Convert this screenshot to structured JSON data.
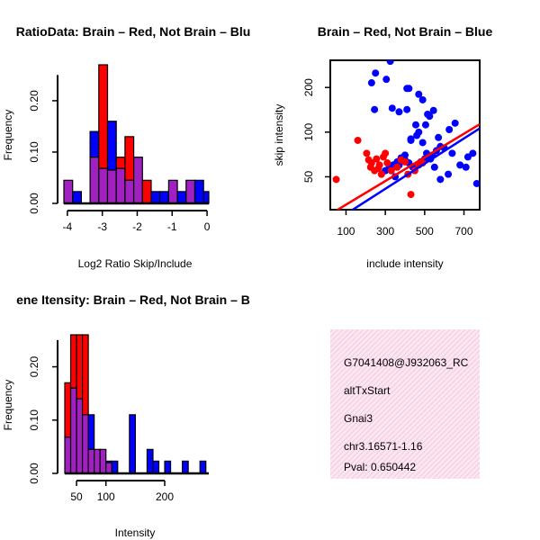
{
  "chart_data": [
    {
      "type": "bar",
      "title": "RatioData: Brain – Red, Not Brain – Blu",
      "xlabel": "Log2 Ratio Skip/Include",
      "ylabel": "Frequency",
      "xlim": [
        -4.1,
        0.05
      ],
      "ylim": [
        0,
        0.27
      ],
      "xticks": [
        "-4",
        "-3",
        "-2",
        "-1",
        "0"
      ],
      "yticks": [
        "0.00",
        "0.10",
        "0.20"
      ],
      "bin_edges": [
        -4.1,
        -3.85,
        -3.6,
        -3.35,
        -3.1,
        -2.85,
        -2.6,
        -2.35,
        -2.1,
        -1.85,
        -1.6,
        -1.35,
        -1.1,
        -0.85,
        -0.6,
        -0.35,
        -0.1,
        0.05
      ],
      "series": [
        {
          "name": "Brain",
          "color": "#ff0000",
          "values": [
            0.045,
            0,
            0,
            0.09,
            0.27,
            0.065,
            0.09,
            0.13,
            0.09,
            0.045,
            0,
            0,
            0.045,
            0,
            0.045,
            0,
            0
          ]
        },
        {
          "name": "Not Brain",
          "color": "#0000ff",
          "values": [
            0.045,
            0.023,
            0,
            0.14,
            0.068,
            0.16,
            0.068,
            0.045,
            0.09,
            0,
            0.023,
            0.023,
            0.045,
            0.023,
            0.045,
            0.045,
            0.023
          ]
        }
      ]
    },
    {
      "type": "scatter",
      "title": "Brain – Red, Not Brain – Blue",
      "xlabel": "include intensity",
      "ylabel": "skip intensity",
      "xlim": [
        20,
        780
      ],
      "ylim": [
        30,
        305
      ],
      "xticks": [
        "100",
        "300",
        "500",
        "700"
      ],
      "yticks": [
        "50",
        "100",
        "200"
      ],
      "series": [
        {
          "name": "Brain",
          "color": "#ff0000",
          "x": [
            50,
            160,
            205,
            215,
            225,
            230,
            245,
            255,
            265,
            270,
            280,
            290,
            300,
            310,
            330,
            360,
            380,
            400,
            415,
            430,
            450,
            470,
            490
          ],
          "y": [
            48,
            88,
            72,
            65,
            58,
            62,
            55,
            66,
            57,
            60,
            52,
            68,
            72,
            62,
            55,
            58,
            65,
            63,
            52,
            38,
            55,
            60,
            62
          ],
          "fit": [
            [
              20,
              28
            ],
            [
              780,
              113
            ]
          ]
        },
        {
          "name": "Not Brain",
          "color": "#0000ff",
          "x": [
            250,
            325,
            230,
            305,
            370,
            410,
            420,
            335,
            410,
            470,
            245,
            490,
            545,
            430,
            455,
            515,
            525,
            505,
            625,
            655,
            680,
            720,
            745,
            765,
            580,
            600,
            640,
            560,
            540,
            520,
            500,
            480,
            460,
            440,
            420,
            400,
            380,
            360,
            340,
            320,
            300,
            470,
            570,
            710,
            620,
            580,
            550,
            530,
            510,
            490,
            460,
            430,
            400,
            370,
            350,
            330
          ],
          "y": [
            250,
            300,
            215,
            227,
            137,
            197,
            197,
            145,
            142,
            180,
            142,
            165,
            140,
            88,
            112,
            132,
            128,
            112,
            104,
            115,
            60,
            68,
            72,
            45,
            80,
            78,
            72,
            75,
            70,
            68,
            66,
            63,
            60,
            58,
            62,
            65,
            67,
            63,
            60,
            58,
            55,
            100,
            92,
            58,
            52,
            48,
            58,
            66,
            72,
            85,
            95,
            90,
            70,
            60,
            50,
            55
          ],
          "fit": [
            [
              20,
              24
            ],
            [
              780,
              106
            ]
          ]
        }
      ]
    },
    {
      "type": "bar",
      "title": "ene Itensity: Brain – Red, Not Brain – B",
      "xlabel": "Intensity",
      "ylabel": "Frequency",
      "xlim": [
        30,
        275
      ],
      "ylim": [
        0,
        0.26
      ],
      "xticks": [
        "50",
        "100",
        "200"
      ],
      "yticks": [
        "0.00",
        "0.10",
        "0.20"
      ],
      "bin_edges": [
        30,
        40,
        50,
        60,
        70,
        80,
        90,
        100,
        110,
        120,
        130,
        140,
        150,
        160,
        170,
        180,
        190,
        200,
        210,
        220,
        230,
        240,
        250,
        260,
        270
      ],
      "series": [
        {
          "name": "Brain",
          "color": "#ff0000",
          "values": [
            0.17,
            0.26,
            0.26,
            0.26,
            0.045,
            0.045,
            0.045,
            0.02,
            0,
            0,
            0,
            0,
            0,
            0,
            0,
            0,
            0,
            0,
            0,
            0,
            0,
            0,
            0,
            0
          ]
        },
        {
          "name": "Not Brain",
          "color": "#0000ff",
          "values": [
            0.068,
            0.16,
            0.14,
            0.11,
            0.11,
            0.045,
            0.045,
            0.023,
            0.023,
            0,
            0,
            0.11,
            0,
            0,
            0.045,
            0.023,
            0,
            0.023,
            0,
            0,
            0.023,
            0,
            0,
            0.023
          ]
        }
      ]
    }
  ],
  "info_panel": {
    "id": "G7041408@J932063_RC",
    "event_type": "altTxStart",
    "gene": "Gnai3",
    "location": "chr3.16571-1.16",
    "pval": "Pval: 0.650442",
    "pval_color": "#8b0000",
    "background": "#f7d9ec"
  }
}
